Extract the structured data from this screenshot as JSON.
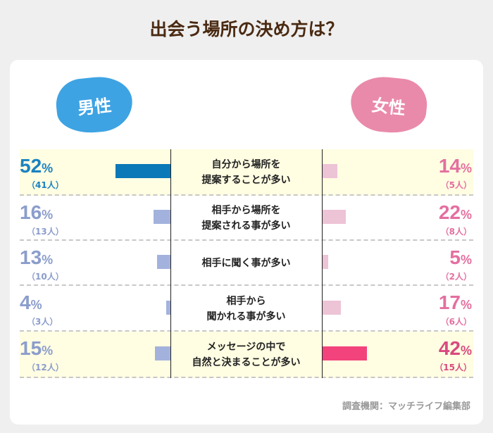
{
  "chart_data": {
    "type": "bar",
    "title": "出会う場所の決め方は？",
    "groups": [
      "男性",
      "女性"
    ],
    "categories": [
      "自分から場所を\n提案することが多い",
      "相手から場所を\n提案される事が多い",
      "相手に聞く事が多い",
      "相手から\n聞かれる事が多い",
      "メッセージの中で\n自然と決まることが多い"
    ],
    "series": [
      {
        "name": "男性",
        "values": [
          52,
          16,
          13,
          4,
          15
        ],
        "counts": [
          "（41人）",
          "（13人）",
          "（10人）",
          "（3人）",
          "（12人）"
        ]
      },
      {
        "name": "女性",
        "values": [
          14,
          22,
          5,
          17,
          42
        ],
        "counts": [
          "（5人）",
          "（8人）",
          "（2人）",
          "（6人）",
          "（15人）"
        ]
      }
    ],
    "highlight": {
      "男性": 0,
      "女性": 4
    },
    "unit": "%",
    "source": "調査機関：マッチライフ編集部"
  },
  "colors": {
    "male_blob": "#3ea3e3",
    "female_blob": "#ea8aaa",
    "male_hl": "#0b78b8",
    "male_bar": "#a3b2dd",
    "female_hl": "#f2437c",
    "female_bar": "#edc3d6",
    "male_hl_text": "#1a82c2",
    "male_text": "#8b9dcc",
    "female_text": "#e46fa0",
    "female_hl_text": "#d84a80"
  }
}
